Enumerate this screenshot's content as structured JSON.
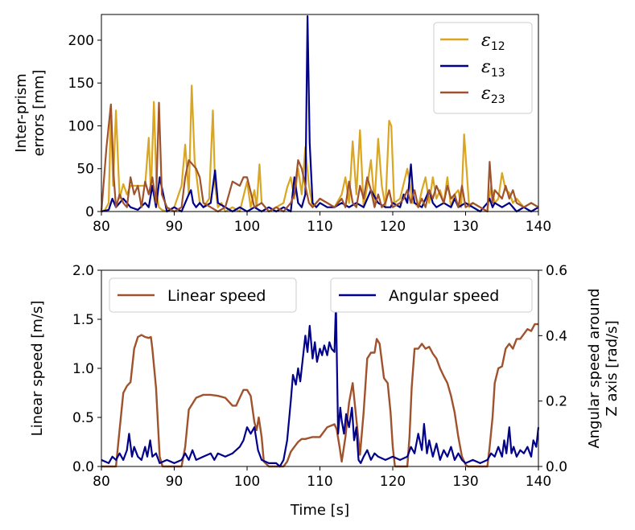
{
  "chart_data": [
    {
      "type": "line",
      "ylabel_lines": [
        "Inter-prism",
        "errors [mm]"
      ],
      "xlim": [
        80,
        140
      ],
      "ylim": [
        0,
        230
      ],
      "xticks": [
        80,
        90,
        100,
        110,
        120,
        130,
        140
      ],
      "yticks": [
        0,
        50,
        100,
        150,
        200
      ],
      "colors": {
        "e12": "#DAA520",
        "e13": "#00008B",
        "e23": "#A0522D"
      },
      "legend": [
        {
          "sym": "ε",
          "sub": "12"
        },
        {
          "sym": "ε",
          "sub": "13"
        },
        {
          "sym": "ε",
          "sub": "23"
        }
      ],
      "series": [
        {
          "name": "ε12",
          "x": [
            80,
            80.5,
            81,
            81.3,
            81.6,
            82,
            82.5,
            83,
            83.5,
            84,
            85,
            86,
            86.5,
            86.8,
            87.2,
            87.6,
            87.9,
            88.3,
            89,
            90,
            91,
            91.5,
            92,
            92.4,
            92.8,
            93.5,
            94,
            94.8,
            95.3,
            95.6,
            96,
            96.5,
            97,
            98,
            99,
            100,
            100.5,
            101,
            101.3,
            101.7,
            102,
            102.5,
            103,
            104,
            105,
            105.5,
            106,
            106.5,
            107,
            107.5,
            108,
            108.5,
            109,
            110,
            111,
            112,
            113,
            113.5,
            114,
            114.5,
            115,
            115.5,
            116,
            116.5,
            117,
            117.5,
            118,
            118.5,
            119,
            119.5,
            119.8,
            120.2,
            121,
            122,
            122.4,
            122.7,
            123,
            123.5,
            124,
            124.5,
            125,
            125.5,
            126,
            126.5,
            127,
            127.5,
            128,
            128.5,
            129,
            129.4,
            129.8,
            130.5,
            131,
            132,
            133,
            133.5,
            134,
            134.5,
            135,
            135.5,
            136,
            136.5,
            137,
            138,
            139,
            140
          ],
          "y": [
            0,
            2,
            10,
            120,
            30,
            118,
            15,
            32,
            20,
            30,
            30,
            30,
            86,
            20,
            128,
            20,
            5,
            2,
            0,
            5,
            30,
            78,
            20,
            147,
            60,
            10,
            5,
            15,
            118,
            30,
            5,
            10,
            0,
            5,
            0,
            35,
            5,
            25,
            5,
            55,
            10,
            5,
            0,
            5,
            10,
            28,
            40,
            15,
            50,
            20,
            75,
            30,
            5,
            15,
            10,
            5,
            20,
            40,
            10,
            82,
            20,
            95,
            5,
            30,
            60,
            10,
            85,
            30,
            5,
            106,
            100,
            10,
            15,
            50,
            30,
            10,
            10,
            5,
            25,
            40,
            10,
            40,
            15,
            25,
            10,
            40,
            5,
            20,
            25,
            5,
            90,
            5,
            10,
            5,
            0,
            30,
            10,
            15,
            45,
            25,
            22,
            10,
            15,
            5,
            10,
            5
          ]
        },
        {
          "name": "ε13",
          "x": [
            80,
            81,
            81.5,
            82,
            83,
            84,
            85,
            86,
            86.5,
            87,
            87.5,
            88,
            89,
            90,
            91,
            92,
            92.3,
            92.6,
            93,
            93.5,
            94,
            95,
            95.6,
            96,
            97,
            98,
            99,
            100,
            101,
            102,
            103,
            104,
            105,
            106,
            106.5,
            107,
            107.5,
            108,
            108.3,
            108.6,
            109,
            109.5,
            110,
            111,
            112,
            113,
            114,
            115,
            116,
            117,
            118,
            119,
            119.7,
            120,
            121,
            121.5,
            122,
            122.5,
            122.8,
            123,
            124,
            125,
            125.5,
            126,
            127,
            128,
            128.5,
            129,
            130,
            131,
            132,
            133,
            133.3,
            133.7,
            134,
            135,
            136,
            137,
            138,
            139,
            140
          ],
          "y": [
            0,
            2,
            15,
            5,
            15,
            5,
            2,
            10,
            5,
            30,
            5,
            40,
            0,
            5,
            0,
            20,
            25,
            10,
            5,
            10,
            5,
            10,
            48,
            10,
            5,
            0,
            5,
            0,
            5,
            0,
            5,
            0,
            5,
            0,
            40,
            10,
            5,
            20,
            228,
            80,
            10,
            5,
            10,
            5,
            5,
            10,
            5,
            10,
            5,
            25,
            10,
            5,
            5,
            10,
            5,
            20,
            10,
            55,
            20,
            10,
            5,
            25,
            10,
            5,
            10,
            5,
            15,
            5,
            10,
            5,
            0,
            10,
            15,
            5,
            10,
            5,
            10,
            0,
            5,
            0,
            5
          ]
        },
        {
          "name": "ε23",
          "x": [
            80,
            80.7,
            81.3,
            81.7,
            82,
            82.5,
            83,
            83.5,
            84,
            84.5,
            85,
            85.5,
            86,
            86.5,
            87,
            87.5,
            87.9,
            88.3,
            89,
            90,
            91,
            91.5,
            92,
            93,
            93.5,
            94,
            95,
            96,
            97,
            98,
            99,
            99.5,
            100,
            101,
            102,
            103,
            104,
            105,
            106,
            106.5,
            107,
            107.5,
            108,
            108.5,
            109,
            110,
            111,
            112,
            113,
            113.5,
            114,
            114.5,
            115,
            115.5,
            116,
            116.5,
            117,
            117.5,
            118,
            118.5,
            119,
            119.5,
            120,
            121,
            121.5,
            122,
            122.5,
            123,
            123.5,
            124,
            124.5,
            125,
            125.5,
            126,
            126.5,
            127,
            127.5,
            128,
            128.5,
            129,
            129.5,
            130,
            131,
            132,
            133,
            133.3,
            133.7,
            134,
            135,
            135.5,
            136,
            136.5,
            137,
            138,
            139,
            140
          ],
          "y": [
            0,
            75,
            125,
            40,
            5,
            20,
            10,
            5,
            40,
            20,
            30,
            5,
            35,
            20,
            40,
            10,
            127,
            20,
            5,
            0,
            5,
            40,
            60,
            50,
            40,
            10,
            5,
            0,
            5,
            35,
            30,
            40,
            40,
            5,
            10,
            0,
            5,
            0,
            10,
            20,
            60,
            50,
            30,
            10,
            5,
            15,
            10,
            5,
            15,
            5,
            35,
            10,
            5,
            30,
            15,
            40,
            25,
            5,
            20,
            5,
            10,
            25,
            5,
            10,
            15,
            25,
            10,
            25,
            5,
            15,
            5,
            25,
            15,
            30,
            20,
            10,
            30,
            15,
            20,
            5,
            30,
            5,
            10,
            5,
            0,
            58,
            10,
            25,
            15,
            30,
            15,
            25,
            10,
            5,
            10,
            5
          ]
        }
      ]
    },
    {
      "type": "line",
      "xlabel": "Time [s]",
      "ylabel": "Linear speed [m/s]",
      "ylabel_right_lines": [
        "Angular speed around",
        "Z axis [rad/s]"
      ],
      "xlim": [
        80,
        140
      ],
      "ylim": [
        0,
        2.0
      ],
      "ylim_right": [
        0,
        0.6
      ],
      "xticks": [
        80,
        90,
        100,
        110,
        120,
        130,
        140
      ],
      "yticks": [
        "0.0",
        "0.5",
        "1.0",
        "1.5",
        "2.0"
      ],
      "yticks_right": [
        "0.0",
        "0.2",
        "0.4",
        "0.6"
      ],
      "colors": {
        "linear": "#A0522D",
        "angular": "#00008B"
      },
      "legend": {
        "linear": "Linear speed",
        "angular": "Angular speed"
      },
      "series": [
        {
          "name": "Linear speed",
          "axis": "left",
          "x": [
            80,
            82,
            82.4,
            83,
            83.5,
            84,
            84.5,
            85,
            85.5,
            86,
            86.5,
            86.8,
            87,
            87.5,
            88,
            88.4,
            89,
            90,
            91,
            91.5,
            92,
            93,
            94,
            95,
            96,
            97,
            98,
            98.5,
            99,
            99.5,
            100,
            100.5,
            101,
            101.3,
            101.6,
            102,
            102.3,
            103,
            104,
            105,
            105.5,
            106,
            106.5,
            107,
            107.5,
            108,
            109,
            110,
            111,
            112,
            112.3,
            112.7,
            113,
            113.5,
            114,
            114.5,
            115,
            115.5,
            116,
            116.5,
            117,
            117.5,
            117.8,
            118.2,
            118.8,
            119.3,
            119.7,
            120,
            120.3,
            121,
            122,
            122.3,
            122.6,
            123,
            123.5,
            124,
            124.5,
            125,
            125.5,
            126,
            126.5,
            127,
            127.5,
            128,
            128.5,
            129,
            129.5,
            130,
            130.3,
            131,
            132,
            133,
            133.3,
            133.7,
            134,
            134.5,
            135,
            135.5,
            136,
            136.5,
            137,
            137.5,
            138,
            138.5,
            139,
            139.5,
            140
          ],
          "y": [
            0,
            0,
            0.3,
            0.75,
            0.82,
            0.86,
            1.2,
            1.32,
            1.34,
            1.32,
            1.31,
            1.32,
            1.2,
            0.8,
            0.1,
            0,
            0,
            0,
            0,
            0.2,
            0.58,
            0.7,
            0.73,
            0.73,
            0.72,
            0.7,
            0.62,
            0.62,
            0.7,
            0.78,
            0.78,
            0.72,
            0.45,
            0.37,
            0.5,
            0.3,
            0.05,
            0,
            0,
            0,
            0.05,
            0.15,
            0.2,
            0.25,
            0.28,
            0.28,
            0.3,
            0.3,
            0.4,
            0.43,
            0.38,
            0.2,
            0.05,
            0.3,
            0.65,
            0.85,
            0.48,
            0.12,
            0.55,
            1.1,
            1.16,
            1.16,
            1.3,
            1.25,
            0.9,
            0.85,
            0.55,
            0.2,
            0,
            0,
            0,
            0.3,
            0.8,
            1.2,
            1.2,
            1.25,
            1.2,
            1.22,
            1.15,
            1.1,
            1.0,
            0.92,
            0.85,
            0.72,
            0.55,
            0.3,
            0.1,
            0.02,
            0,
            0,
            0,
            0,
            0.2,
            0.5,
            0.85,
            1.0,
            1.02,
            1.2,
            1.25,
            1.2,
            1.3,
            1.3,
            1.35,
            1.4,
            1.38,
            1.45,
            1.45
          ]
        },
        {
          "name": "Angular speed",
          "axis": "right",
          "x": [
            80,
            81,
            81.5,
            82,
            82.5,
            83,
            83.5,
            83.8,
            84.2,
            84.5,
            85,
            85.5,
            86,
            86.3,
            86.7,
            87,
            87.5,
            88,
            89,
            90,
            91,
            91.5,
            92,
            92.5,
            93,
            94,
            95,
            95.5,
            96,
            97,
            98,
            99,
            99.5,
            100,
            100.5,
            101,
            101.5,
            102,
            103,
            104,
            104.5,
            105,
            105.5,
            106,
            106.3,
            106.7,
            107,
            107.3,
            107.6,
            108,
            108.3,
            108.6,
            109,
            109.3,
            109.6,
            110,
            110.3,
            110.6,
            111,
            111.3,
            111.6,
            112,
            112.2,
            112.5,
            112.8,
            113,
            113.3,
            113.6,
            114,
            114.4,
            114.7,
            115,
            115.3,
            115.6,
            116,
            116.5,
            117,
            117.5,
            118,
            119,
            120,
            121,
            122,
            122.5,
            123,
            123.5,
            124,
            124.3,
            124.7,
            125,
            125.5,
            126,
            126.5,
            127,
            127.5,
            128,
            128.5,
            129,
            129.5,
            130,
            131,
            132,
            133,
            133.5,
            134,
            134.5,
            135,
            135.3,
            135.6,
            136,
            136.3,
            136.6,
            137,
            137.5,
            138,
            138.5,
            139,
            139.3,
            139.7,
            140
          ],
          "y": [
            0.02,
            0.01,
            0.03,
            0.02,
            0.04,
            0.02,
            0.05,
            0.1,
            0.03,
            0.06,
            0.03,
            0.02,
            0.06,
            0.03,
            0.08,
            0.03,
            0.04,
            0.01,
            0.02,
            0.01,
            0.02,
            0.04,
            0.02,
            0.05,
            0.02,
            0.03,
            0.04,
            0.02,
            0.04,
            0.03,
            0.04,
            0.06,
            0.08,
            0.12,
            0.1,
            0.12,
            0.05,
            0.02,
            0.01,
            0.01,
            0.0,
            0.02,
            0.08,
            0.2,
            0.28,
            0.25,
            0.3,
            0.26,
            0.32,
            0.4,
            0.35,
            0.43,
            0.33,
            0.38,
            0.32,
            0.36,
            0.34,
            0.37,
            0.34,
            0.38,
            0.36,
            0.35,
            0.5,
            0.1,
            0.18,
            0.14,
            0.1,
            0.16,
            0.12,
            0.18,
            0.08,
            0.12,
            0.02,
            0.01,
            0.03,
            0.05,
            0.02,
            0.04,
            0.03,
            0.02,
            0.03,
            0.02,
            0.03,
            0.06,
            0.04,
            0.1,
            0.05,
            0.13,
            0.04,
            0.08,
            0.03,
            0.07,
            0.02,
            0.05,
            0.03,
            0.06,
            0.02,
            0.04,
            0.02,
            0.01,
            0.02,
            0.01,
            0.02,
            0.04,
            0.03,
            0.06,
            0.03,
            0.08,
            0.04,
            0.12,
            0.04,
            0.06,
            0.03,
            0.05,
            0.04,
            0.06,
            0.03,
            0.08,
            0.06,
            0.12
          ]
        }
      ]
    }
  ]
}
